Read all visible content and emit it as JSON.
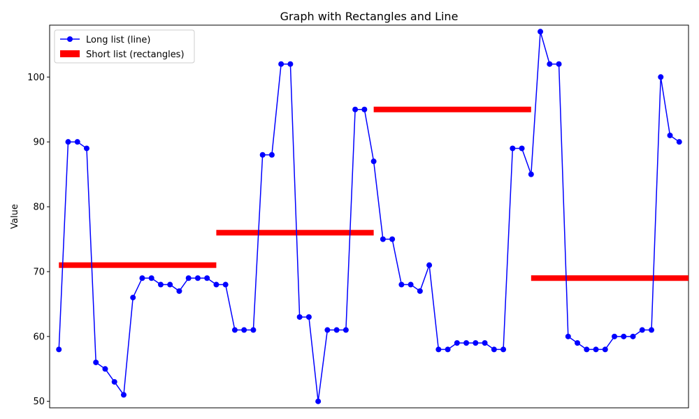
{
  "chart_data": {
    "type": "line",
    "title": "Graph with Rectangles and Line",
    "xlabel": "",
    "ylabel": "Value",
    "ylim": [
      49,
      108
    ],
    "xlim": [
      -1,
      68
    ],
    "yticks": [
      50,
      60,
      70,
      80,
      90,
      100
    ],
    "xticks_visible": false,
    "legend_position": "top-left",
    "colors": {
      "line": "#0000ff",
      "rect": "#ff0000"
    },
    "series": [
      {
        "name": "Long list (line)",
        "kind": "line",
        "x": [
          0,
          1,
          2,
          3,
          4,
          5,
          6,
          7,
          8,
          9,
          10,
          11,
          12,
          13,
          14,
          15,
          16,
          17,
          18,
          19,
          20,
          21,
          22,
          23,
          24,
          25,
          26,
          27,
          28,
          29,
          30,
          31,
          32,
          33,
          34,
          35,
          36,
          37,
          38,
          39,
          40,
          41,
          42,
          43,
          44,
          45,
          46,
          47,
          48,
          49,
          50,
          51,
          52,
          53,
          54,
          55,
          56,
          57,
          58,
          59,
          60,
          61,
          62,
          63,
          64,
          65,
          66,
          67
        ],
        "values": [
          58,
          90,
          90,
          89,
          56,
          55,
          53,
          51,
          66,
          69,
          69,
          68,
          68,
          67,
          69,
          69,
          69,
          68,
          68,
          61,
          61,
          61,
          88,
          88,
          102,
          102,
          63,
          63,
          50,
          61,
          61,
          61,
          95,
          95,
          87,
          75,
          75,
          68,
          68,
          67,
          71,
          58,
          58,
          59,
          59,
          59,
          59,
          58,
          58,
          89,
          89,
          85,
          107,
          102,
          102,
          60,
          59,
          58,
          58,
          58,
          60,
          60,
          60,
          61,
          61,
          100,
          91,
          90
        ]
      },
      {
        "name": "Short list (rectangles)",
        "kind": "rectangles",
        "segments": [
          {
            "x_start": 0,
            "x_end": 17,
            "value": 71
          },
          {
            "x_start": 17,
            "x_end": 34,
            "value": 76
          },
          {
            "x_start": 34,
            "x_end": 51,
            "value": 95
          },
          {
            "x_start": 51,
            "x_end": 68,
            "value": 69
          }
        ]
      }
    ]
  }
}
